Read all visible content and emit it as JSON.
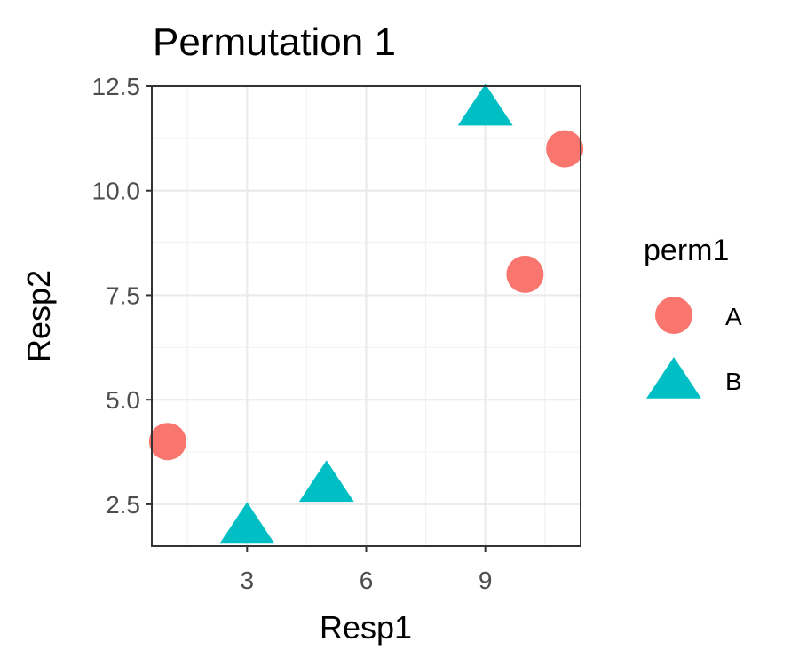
{
  "chart_data": {
    "type": "scatter",
    "title": "Permutation 1",
    "xlabel": "Resp1",
    "ylabel": "Resp2",
    "xlim": [
      0.6,
      11.4
    ],
    "ylim": [
      1.5,
      12.5
    ],
    "x_ticks": [
      3,
      6,
      9
    ],
    "x_tick_labels": [
      "3",
      "6",
      "9"
    ],
    "y_ticks": [
      2.5,
      5.0,
      7.5,
      10.0,
      12.5
    ],
    "y_tick_labels": [
      "2.5",
      "5.0",
      "7.5",
      "10.0",
      "12.5"
    ],
    "grid": true,
    "legend": {
      "title": "perm1",
      "position": "right"
    },
    "series": [
      {
        "name": "A",
        "shape": "circle",
        "color": "#F8766D",
        "points": [
          {
            "x": 1,
            "y": 4
          },
          {
            "x": 10,
            "y": 8
          },
          {
            "x": 11,
            "y": 11
          }
        ]
      },
      {
        "name": "B",
        "shape": "triangle",
        "color": "#00BFC4",
        "points": [
          {
            "x": 3,
            "y": 2
          },
          {
            "x": 5,
            "y": 3
          },
          {
            "x": 9,
            "y": 12
          }
        ]
      }
    ]
  }
}
